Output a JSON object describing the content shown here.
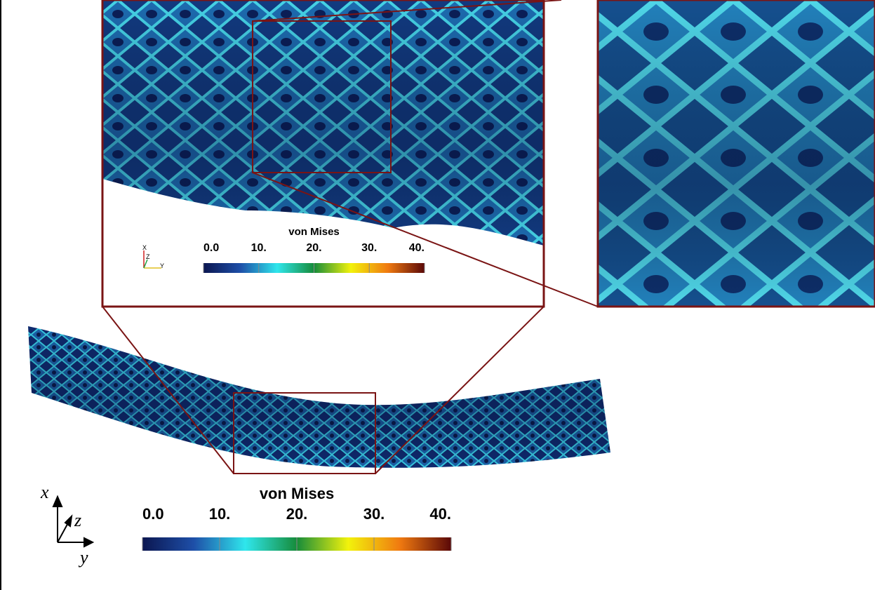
{
  "main_colorbar": {
    "title": "von Mises",
    "range": [
      0,
      40
    ],
    "ticks": [
      {
        "value": 0,
        "label": "0.0"
      },
      {
        "value": 10,
        "label": "10."
      },
      {
        "value": 20,
        "label": "20."
      },
      {
        "value": 30,
        "label": "30."
      },
      {
        "value": 40,
        "label": "40."
      }
    ],
    "colormap": [
      "#0b1650",
      "#1e4fa8",
      "#2fe6ec",
      "#168c3a",
      "#f2f20c",
      "#f07a10",
      "#5a0808"
    ]
  },
  "inset_colorbar": {
    "title": "von Mises",
    "range": [
      0,
      40
    ],
    "ticks": [
      {
        "value": 0,
        "label": "0.0"
      },
      {
        "value": 10,
        "label": "10."
      },
      {
        "value": 20,
        "label": "20."
      },
      {
        "value": 30,
        "label": "30."
      },
      {
        "value": 40,
        "label": "40."
      }
    ],
    "colormap": [
      "#0b1650",
      "#1e4fa8",
      "#2fe6ec",
      "#168c3a",
      "#f2f20c",
      "#f07a10",
      "#5a0808"
    ]
  },
  "main_axes": {
    "x": "x",
    "z": "z",
    "y": "y"
  },
  "inset_axes": {
    "x": "X",
    "z": "Z",
    "y": "Y"
  }
}
